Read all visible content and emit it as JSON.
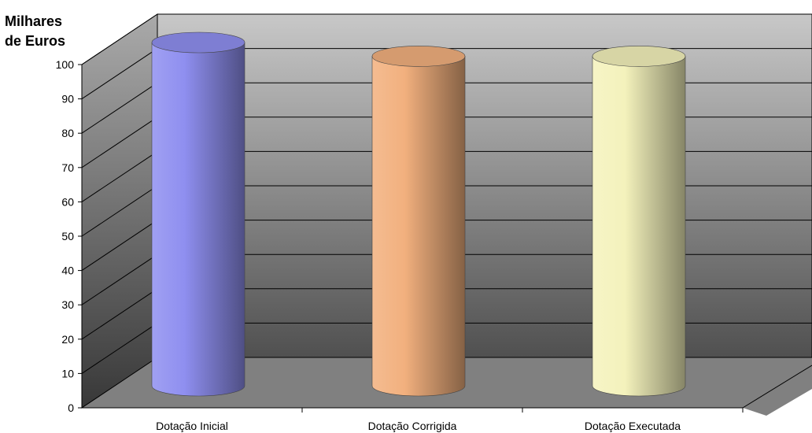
{
  "chart_data": {
    "type": "bar",
    "style": "3d-cylinder",
    "ylabel_lines": [
      "Milhares",
      "de Euros"
    ],
    "categories": [
      "Dotação Inicial",
      "Dotação Corrigida",
      "Dotação Executada"
    ],
    "series": [
      {
        "values": [
          100,
          96,
          96
        ]
      }
    ],
    "bar_colors": [
      "#8f8ff0",
      "#f2b07e",
      "#f4f2bc"
    ],
    "ylim": [
      0,
      100
    ],
    "yticks": [
      0,
      10,
      20,
      30,
      40,
      50,
      60,
      70,
      80,
      90,
      100
    ],
    "grid": true,
    "legend": "none",
    "wall_color_top": "#c8c8c8",
    "wall_color_bottom": "#505050",
    "floor_color": "#808080"
  }
}
